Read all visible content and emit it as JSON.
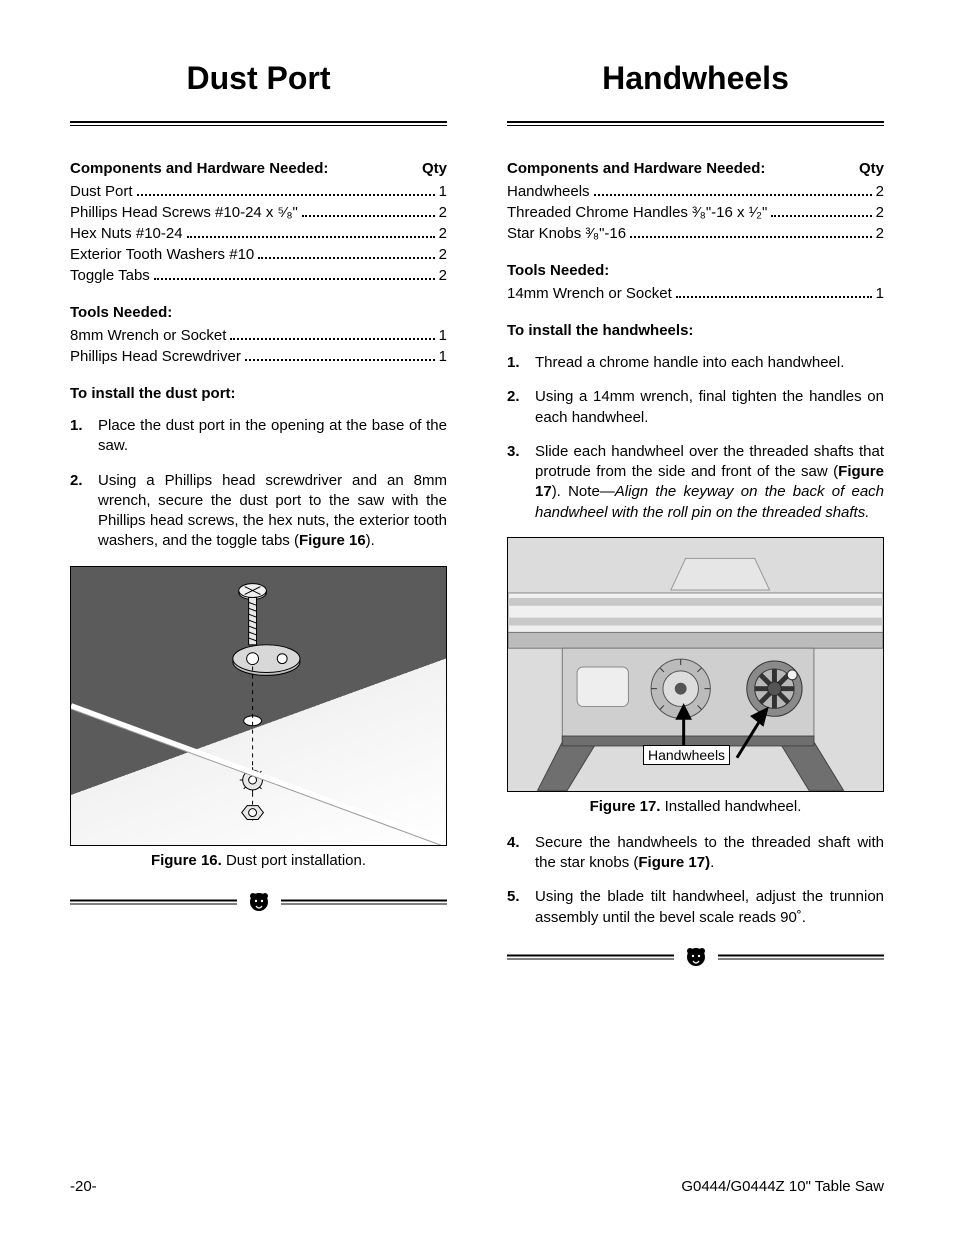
{
  "page": {
    "number_label": "-20-",
    "footer_right": "G0444/G0444Z 10\" Table Saw"
  },
  "left": {
    "title": "Dust Port",
    "components_header": "Components and Hardware Needed:",
    "qty_header": "Qty",
    "components": [
      {
        "label": "Dust Port",
        "qty": "1"
      },
      {
        "label": "Phillips Head Screws #10-24 x ⁵⁄₈\"",
        "qty": "2"
      },
      {
        "label": "Hex Nuts #10-24",
        "qty": "2"
      },
      {
        "label": "Exterior Tooth Washers #10",
        "qty": "2"
      },
      {
        "label": "Toggle Tabs",
        "qty": "2"
      }
    ],
    "tools_header": "Tools Needed:",
    "tools": [
      {
        "label": "8mm Wrench or Socket",
        "qty": "1"
      },
      {
        "label": "Phillips Head Screwdriver",
        "qty": "1"
      }
    ],
    "install_header": "To install the dust port:",
    "steps": [
      "Place the dust port in the opening at the base of the saw.",
      "Using a Phillips head screwdriver and an 8mm wrench, secure the dust port to the saw with the Phillips head screws, the hex nuts, the exterior tooth washers, and the toggle tabs (<b>Figure 16</b>)."
    ],
    "figure_caption_bold": "Figure 16.",
    "figure_caption_rest": " Dust port installation."
  },
  "right": {
    "title": "Handwheels",
    "components_header": "Components and Hardware Needed:",
    "qty_header": "Qty",
    "components": [
      {
        "label": "Handwheels",
        "qty": "2"
      },
      {
        "label": "Threaded Chrome Handles ³⁄₈\"-16 x ¹⁄₂\"",
        "qty": "2"
      },
      {
        "label": "Star Knobs ³⁄₈\"-16",
        "qty": "2"
      }
    ],
    "tools_header": "Tools Needed:",
    "tools": [
      {
        "label": "14mm Wrench or Socket",
        "qty": "1"
      }
    ],
    "install_header": "To install the handwheels:",
    "steps_a": [
      "Thread a chrome handle into each handwheel.",
      "Using a 14mm wrench, final tighten the handles on each handwheel.",
      "Slide each handwheel over the threaded shafts that protrude from the side and front of the saw (<b>Figure 17</b>). Note—<span class=\"italic\">Align the keyway on the back of each handwheel with the roll pin on the threaded shafts.</span>"
    ],
    "figure_caption_bold": "Figure 17.",
    "figure_caption_rest": " Installed handwheel.",
    "figure_label": "Handwheels",
    "steps_b": [
      "Secure the handwheels to the threaded shaft with the star knobs (<b>Figure 17)</b>.",
      "Using the blade tilt handwheel, adjust the trunnion assembly until the bevel scale reads 90˚."
    ]
  },
  "style": {
    "body_font_size_pt": 11,
    "title_font_size_pt": 24,
    "text_color": "#000000",
    "background_color": "#ffffff",
    "rule_color": "#000000",
    "figure_border_color": "#000000",
    "fig16_dark": "#5b5b5b",
    "fig16_light": "#f2f2f2"
  }
}
